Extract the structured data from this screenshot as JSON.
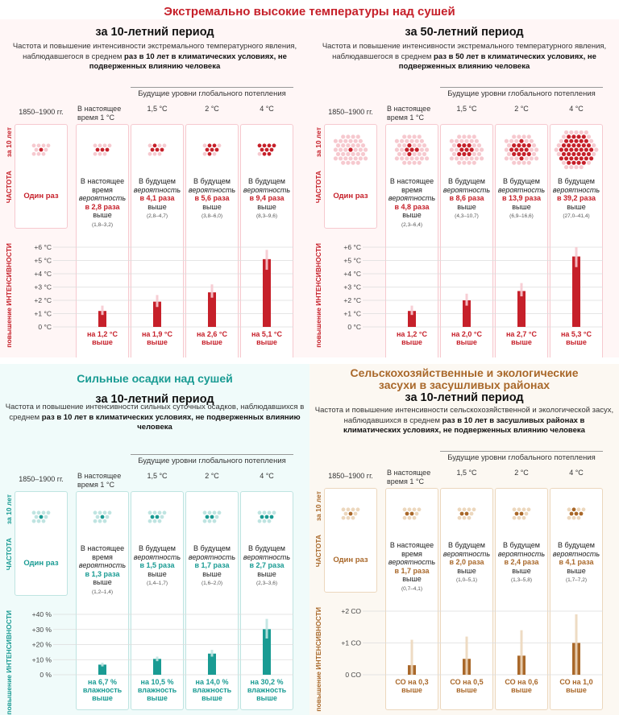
{
  "main_title": "Экстремально высокие температуры над сушей",
  "colors": {
    "heat": "#c6202a",
    "heat_light": "#f6c9cf",
    "heat_bg": "#fff6f6",
    "rain": "#199b93",
    "rain_light": "#bfe4e1",
    "rain_bg": "#f0fbfa",
    "drought": "#a9682a",
    "drought_light": "#ecd7bd",
    "drought_bg": "#fcf8f2"
  },
  "common": {
    "future_levels": "Будущие уровни глобального потепления",
    "col_heads": [
      "1850–1900 гг.",
      "В настоящее время 1 °C",
      "1,5 °C",
      "2 °C",
      "4 °C"
    ],
    "freq_label": "ЧАСТОТА",
    "freq_sub": "за 10 лет",
    "int_label": "повышение ИНТЕНСИВНОСТИ",
    "once": "Один раз",
    "present_a": "В настоящее время",
    "future_a": "В будущем",
    "prob": "вероятность",
    "higher": "выше"
  },
  "panels": [
    {
      "id": "heat10",
      "title": "за 10-летний период",
      "desc_plain": "Частота и повышение интенсивности экстремального температурного явления, наблюдавшегося в среднем ",
      "desc_bold": "раз в 10 лет в климатических условиях, не подверженных влиянию человека",
      "desc_bold2": "",
      "freq": [
        "в 2,8 раза",
        "в 4,1 раза",
        "в 5,6 раза",
        "в 9,4 раза"
      ],
      "ranges": [
        "(1,8–3,2)",
        "(2,8–4,7)",
        "(3,8–6,0)",
        "(8,3–9,6)"
      ],
      "yticks": [
        "+6 °C",
        "+5 °C",
        "+4 °C",
        "+3 °C",
        "+2 °C",
        "+1 °C",
        "0 °C"
      ],
      "int_labels": [
        "на 1,2 °C выше",
        "на 1,9 °C выше",
        "на 2,6 °C выше",
        "на 5,1 °C выше"
      ]
    },
    {
      "id": "heat50",
      "title": "за 50-летний период",
      "desc_plain": "Частота и повышение интенсивности экстремального температурного явления, наблюдавшегося в среднем ",
      "desc_bold": "раз в 50 лет в климатических условиях, не подверженных влиянию человека",
      "desc_bold2": "",
      "freq": [
        "в 4,8 раза",
        "в 8,6 раза",
        "в 13,9 раза",
        "в 39,2 раза"
      ],
      "ranges": [
        "(2,3–6,4)",
        "(4,3–10,7)",
        "(6,9–16,6)",
        "(27,0–41,4)"
      ],
      "yticks": [
        "+6 °C",
        "+5 °C",
        "+4 °C",
        "+3 °C",
        "+2 °C",
        "+1 °C",
        "0 °C"
      ],
      "int_labels": [
        "на 1,2 °C выше",
        "на 2,0 °C выше",
        "на 2,7 °C выше",
        "на 5,3 °C выше"
      ]
    },
    {
      "id": "rain",
      "heading": "Сильные осадки над сушей",
      "title": "за 10-летний период",
      "desc_plain": "Частота и повышение интенсивности сильных суточных осадков, наблюдавшихся в среднем ",
      "desc_bold": "раз в 10 лет в климатических условиях, не подверженных влиянию человека",
      "desc_bold2": "",
      "freq": [
        "в 1,3 раза",
        "в 1,5 раза",
        "в 1,7 раза",
        "в 2,7 раза"
      ],
      "ranges": [
        "(1,2–1,4)",
        "(1,4–1,7)",
        "(1,6–2,0)",
        "(2,3–3,6)"
      ],
      "yticks": [
        "+40 %",
        "+30 %",
        "+20 %",
        "+10 %",
        "0 %"
      ],
      "int_labels": [
        "на 6,7 % влажность выше",
        "на 10,5 % влажность выше",
        "на 14,0 % влажность выше",
        "на 30,2 % влажность выше"
      ]
    },
    {
      "id": "drought",
      "heading": "Сельскохозяйственные и экологические засухи в засушливых районах",
      "title": "за 10-летний период",
      "desc_plain": "Частота и повышение интенсивности сельскохозяйственной и экологической засух, наблюдавшихся в среднем ",
      "desc_bold": "раз в 10 лет в засушливых районах в климатических условиях, не подверженных влиянию человека",
      "desc_bold2": "",
      "freq": [
        "в 1,7 раза",
        "в 2,0 раза",
        "в 2,4 раза",
        "в 4,1 раза"
      ],
      "ranges": [
        "(0,7–4,1)",
        "(1,0–5,1)",
        "(1,3–5,8)",
        "(1,7–7,2)"
      ],
      "yticks": [
        "+2 СО",
        "+1 СО",
        "0 СО"
      ],
      "int_labels": [
        "СО на 0,3 выше",
        "СО на 0,5 выше",
        "СО на 0,6 выше",
        "СО на 1,0 выше"
      ]
    }
  ],
  "chart_data": [
    {
      "type": "bar",
      "title": "Экстремально высокие температуры над сушей — за 10-летний период",
      "ylabel": "повышение ИНТЕНСИВНОСТИ",
      "unit": "°C",
      "categories": [
        "В настоящее время 1 °C",
        "1,5 °C",
        "2 °C",
        "4 °C"
      ],
      "values": [
        1.2,
        1.9,
        2.6,
        5.1
      ],
      "err_low": [
        0.9,
        1.5,
        2.2,
        4.3
      ],
      "err_high": [
        1.6,
        2.4,
        3.2,
        5.8
      ],
      "ylim": [
        0,
        6
      ]
    },
    {
      "type": "bar",
      "title": "Экстремально высокие температуры над сушей — за 50-летний период",
      "ylabel": "повышение ИНТЕНСИВНОСТИ",
      "unit": "°C",
      "categories": [
        "В настоящее время 1 °C",
        "1,5 °C",
        "2 °C",
        "4 °C"
      ],
      "values": [
        1.2,
        2.0,
        2.7,
        5.3
      ],
      "err_low": [
        0.9,
        1.6,
        2.3,
        4.5
      ],
      "err_high": [
        1.6,
        2.5,
        3.3,
        6.0
      ],
      "ylim": [
        0,
        6
      ]
    },
    {
      "type": "bar",
      "title": "Сильные осадки над сушей — за 10-летний период",
      "ylabel": "повышение ИНТЕНСИВНОСТИ",
      "unit": "%",
      "categories": [
        "В настоящее время 1 °C",
        "1,5 °C",
        "2 °C",
        "4 °C"
      ],
      "values": [
        6.7,
        10.5,
        14.0,
        30.2
      ],
      "err_low": [
        5.5,
        9.0,
        12.0,
        24.0
      ],
      "err_high": [
        8.0,
        12.0,
        16.5,
        37.0
      ],
      "ylim": [
        0,
        40
      ]
    },
    {
      "type": "bar",
      "title": "Сельскохозяйственные и экологические засухи в засушливых районах — за 10-летний период",
      "ylabel": "повышение ИНТЕНСИВНОСТИ",
      "unit": "СО",
      "categories": [
        "В настоящее время 1 °C",
        "1,5 °C",
        "2 °C",
        "4 °C"
      ],
      "values": [
        0.3,
        0.5,
        0.6,
        1.0
      ],
      "err_low": [
        0.0,
        0.0,
        0.0,
        0.0
      ],
      "err_high": [
        1.1,
        1.2,
        1.4,
        1.9
      ],
      "ylim": [
        0,
        2
      ]
    }
  ]
}
